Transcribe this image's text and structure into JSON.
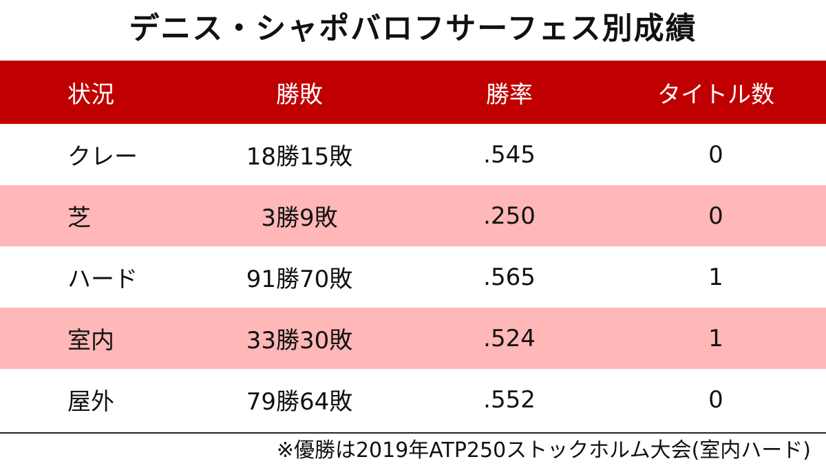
{
  "title": "デニス・シャポバロフサーフェス別成績",
  "colors": {
    "header_bg": "#c00000",
    "header_text": "#ffffff",
    "row_plain": "#ffffff",
    "row_alt": "#ffb7b7"
  },
  "chart_data": {
    "type": "table",
    "columns": [
      "状況",
      "勝敗",
      "勝率",
      "タイトル数"
    ],
    "rows": [
      {
        "status": "クレー",
        "record": "18勝15敗",
        "pct": ".545",
        "titles": "0"
      },
      {
        "status": "芝",
        "record": "3勝9敗",
        "pct": ".250",
        "titles": "0"
      },
      {
        "status": "ハード",
        "record": "91勝70敗",
        "pct": ".565",
        "titles": "1"
      },
      {
        "status": "室内",
        "record": "33勝30敗",
        "pct": ".524",
        "titles": "1"
      },
      {
        "status": "屋外",
        "record": "79勝64敗",
        "pct": ".552",
        "titles": "0"
      }
    ]
  },
  "footnote": "※優勝は2019年ATP250ストックホルム大会(室内ハード)"
}
